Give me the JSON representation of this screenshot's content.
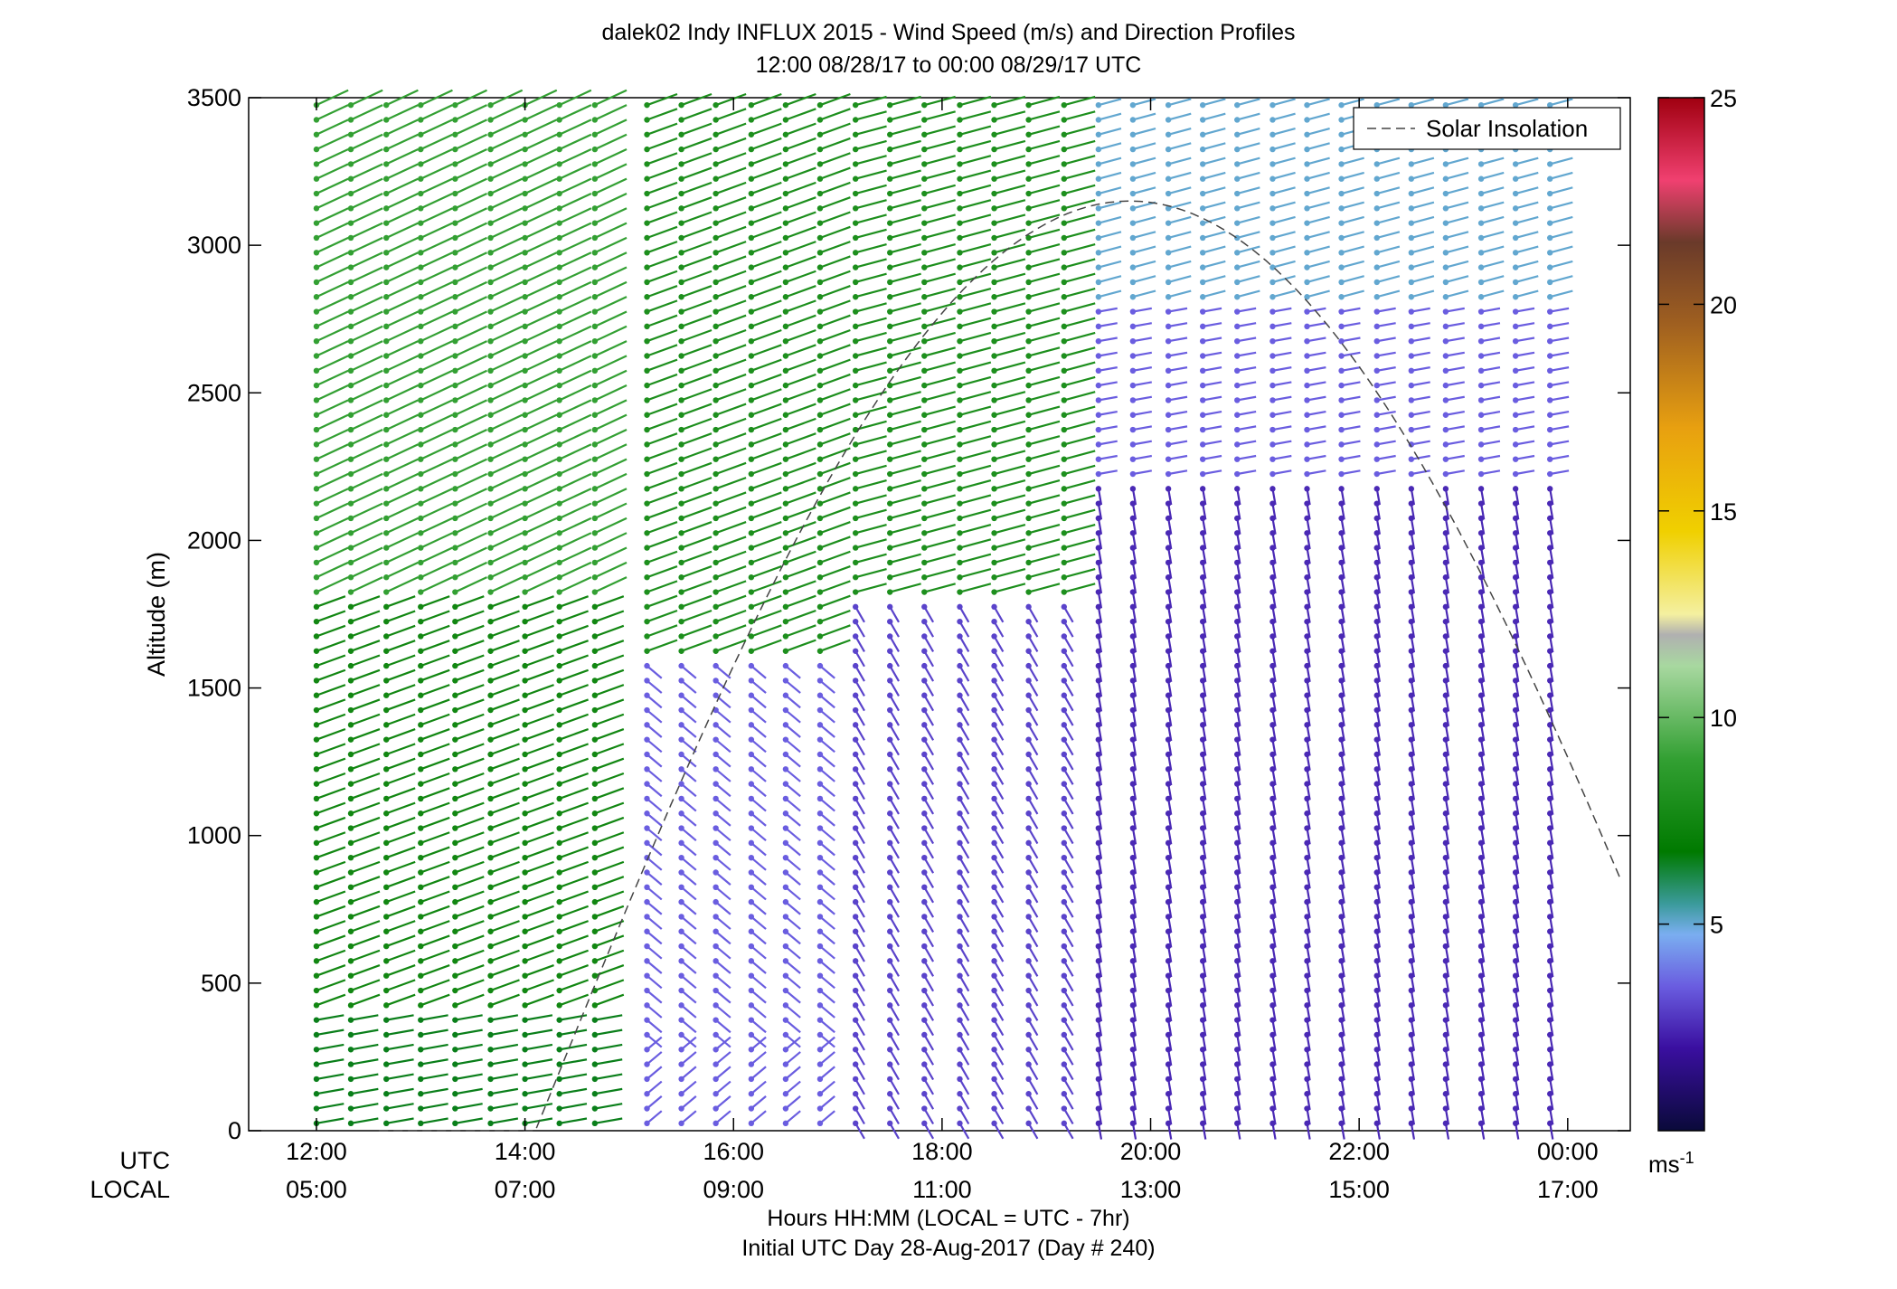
{
  "chart_data": {
    "type": "scatter",
    "title": "dalek02 Indy INFLUX 2015 - Wind Speed (m/s) and Direction Profiles",
    "subtitle": "12:00 08/28/17 to 00:00 08/29/17  UTC",
    "ylabel": "Altitude (m)",
    "xlabel": "Hours HH:MM  (LOCAL = UTC - 7hr)",
    "xlabel2": "Initial UTC Day 28-Aug-2017 (Day # 240)",
    "xlim": [
      11.35,
      24.6
    ],
    "ylim": [
      0,
      3500
    ],
    "yticks": [
      "0",
      "500",
      "1000",
      "1500",
      "2000",
      "2500",
      "3000",
      "3500"
    ],
    "xticks_utc": [
      "12:00",
      "14:00",
      "16:00",
      "18:00",
      "20:00",
      "22:00",
      "00:00"
    ],
    "xticks_local": [
      "05:00",
      "07:00",
      "09:00",
      "11:00",
      "13:00",
      "15:00",
      "17:00"
    ],
    "row_label_utc": "UTC",
    "row_label_local": "LOCAL",
    "legend": {
      "label": "Solar Insolation",
      "placement": "top-right",
      "style": "dashed"
    },
    "colorbar": {
      "min": 0,
      "max": 25,
      "ticks": [
        "5",
        "10",
        "15",
        "20",
        "25"
      ],
      "unit_base": "ms",
      "unit_exp": "-1"
    },
    "profile_times_utc": [
      12.0,
      12.33,
      12.67,
      13.0,
      13.33,
      13.67,
      14.0,
      14.33,
      14.67,
      15.17,
      15.5,
      15.83,
      16.17,
      16.5,
      16.83,
      17.17,
      17.5,
      17.83,
      18.17,
      18.5,
      18.83,
      19.17,
      19.5,
      19.83,
      20.17,
      20.5,
      20.83,
      21.17,
      21.5,
      21.83,
      22.17,
      22.5,
      22.83,
      23.17,
      23.5,
      23.83,
      24.0
    ],
    "solar_insolation_peak_utc": 19.8,
    "layers": [
      {
        "utc_start": 12.0,
        "utc_end": 14.8,
        "alt_min": 0,
        "alt_max": 400,
        "speed": 6.5,
        "dir_deg": 260
      },
      {
        "utc_start": 12.0,
        "utc_end": 14.8,
        "alt_min": 400,
        "alt_max": 1800,
        "speed": 7.5,
        "dir_deg": 250
      },
      {
        "utc_start": 12.0,
        "utc_end": 14.8,
        "alt_min": 1800,
        "alt_max": 3500,
        "speed": 9.0,
        "dir_deg": 245
      },
      {
        "utc_start": 15.0,
        "utc_end": 17.0,
        "alt_min": 0,
        "alt_max": 300,
        "speed": 3.5,
        "dir_deg": 230
      },
      {
        "utc_start": 15.0,
        "utc_end": 17.0,
        "alt_min": 300,
        "alt_max": 1600,
        "speed": 3.5,
        "dir_deg": 310
      },
      {
        "utc_start": 15.0,
        "utc_end": 17.0,
        "alt_min": 1600,
        "alt_max": 3500,
        "speed": 8.0,
        "dir_deg": 250
      },
      {
        "utc_start": 17.0,
        "utc_end": 19.5,
        "alt_min": 0,
        "alt_max": 1800,
        "speed": 3.0,
        "dir_deg": 330
      },
      {
        "utc_start": 17.0,
        "utc_end": 19.5,
        "alt_min": 1800,
        "alt_max": 3500,
        "speed": 8.0,
        "dir_deg": 255
      },
      {
        "utc_start": 19.5,
        "utc_end": 24.0,
        "alt_min": 0,
        "alt_max": 2200,
        "speed": 2.5,
        "dir_deg": 350
      },
      {
        "utc_start": 19.5,
        "utc_end": 24.0,
        "alt_min": 2200,
        "alt_max": 2800,
        "speed": 3.5,
        "dir_deg": 260
      },
      {
        "utc_start": 19.5,
        "utc_end": 24.0,
        "alt_min": 2800,
        "alt_max": 3500,
        "speed": 5.0,
        "dir_deg": 255
      }
    ]
  }
}
